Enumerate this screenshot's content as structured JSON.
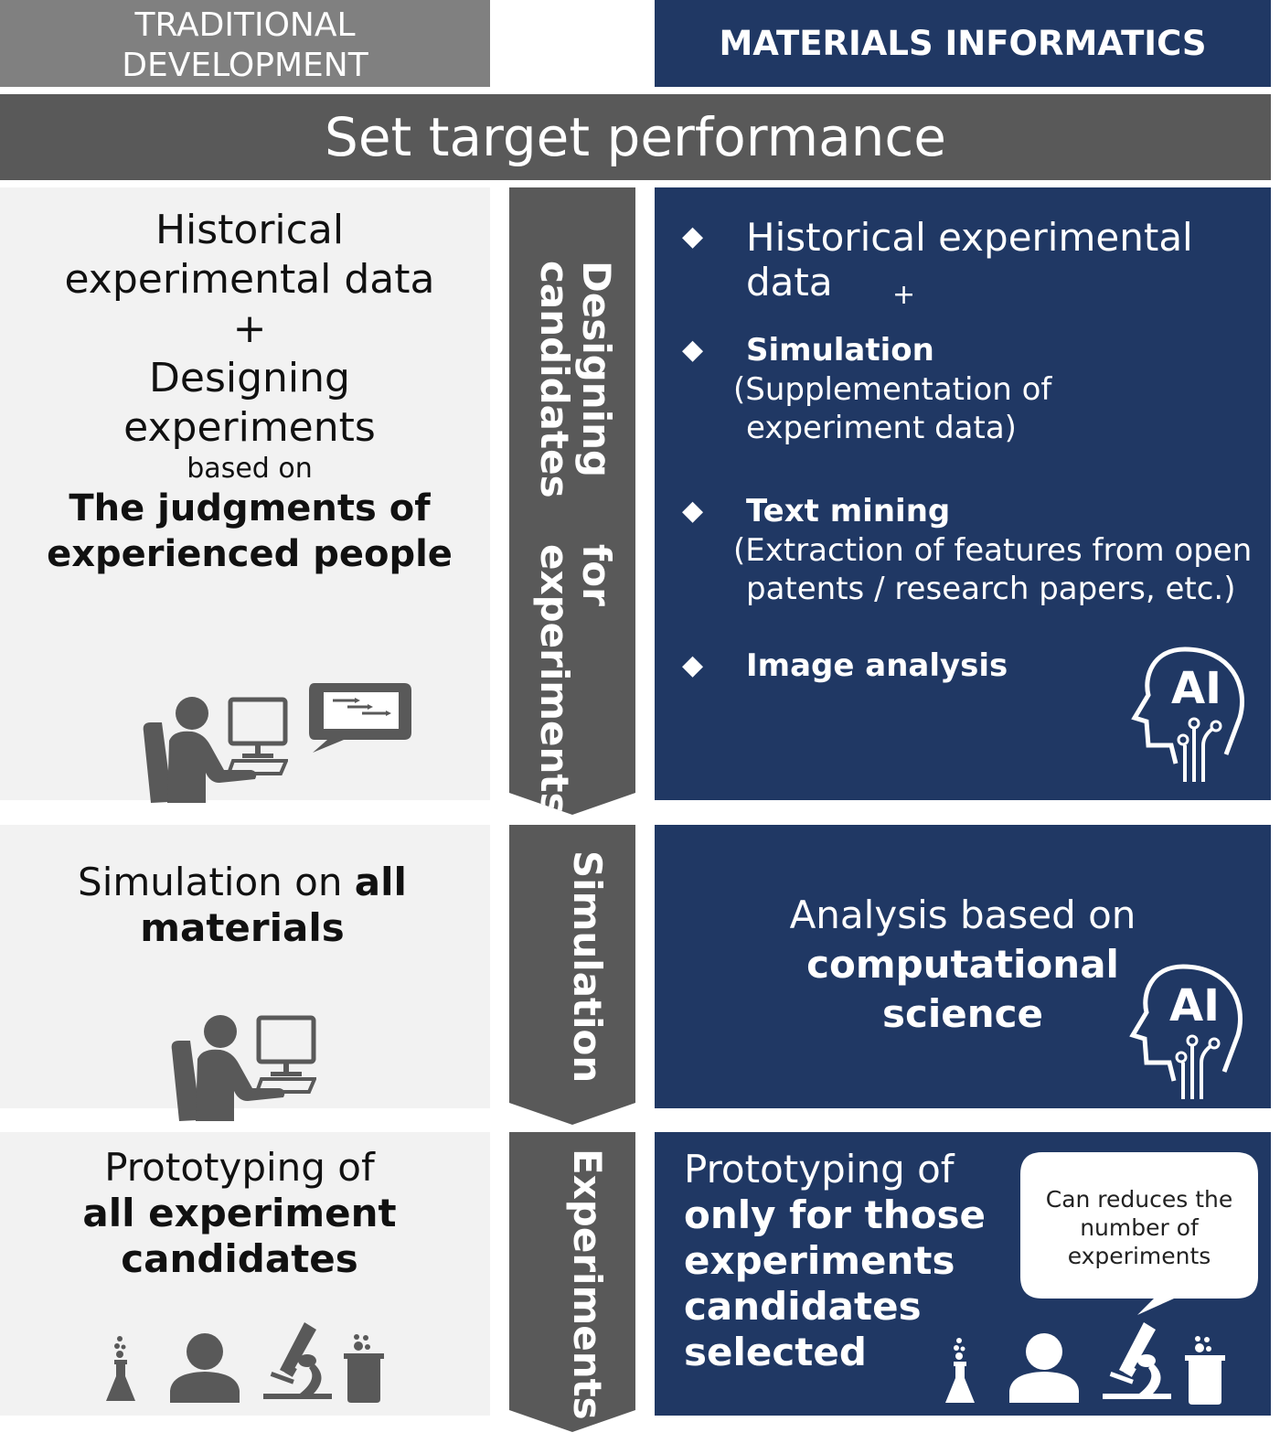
{
  "headers": {
    "traditional": "TRADITIONAL DEVELOPMENT",
    "traditional_line1": "TRADITIONAL",
    "traditional_line2": "DEVELOPMENT",
    "informatics": "MATERIALS INFORMATICS"
  },
  "banner": "Set target performance",
  "stages": [
    {
      "arrow_line1": "Designing candidates",
      "arrow_line2": "for experiments"
    },
    {
      "arrow": "Simulation"
    },
    {
      "arrow": "Experiments"
    }
  ],
  "traditional": {
    "row1": {
      "l1": "Historical",
      "l2": "experimental data",
      "plus": "+",
      "l3": "Designing",
      "l4": "experiments",
      "small": "based on",
      "bold1": "The judgments of",
      "bold2": "experienced people"
    },
    "row2": {
      "l1": "Simulation on ",
      "l1_bold": "all",
      "l2_bold": "materials"
    },
    "row3": {
      "l1": "Prototyping of",
      "bold1": "all experiment",
      "bold2": "candidates"
    }
  },
  "informatics": {
    "row1": {
      "item1": "Historical experimental data",
      "plus": "+",
      "item2": "Simulation",
      "item2_sub1": "(Supplementation of",
      "item2_sub2": "experiment data)",
      "item3": "Text mining",
      "item3_sub1": "(Extraction of features from open",
      "item3_sub2": "patents / research papers, etc.)",
      "item4": "Image analysis",
      "ai_label": "AI"
    },
    "row2": {
      "l1": "Analysis based on",
      "bold1": "computational",
      "bold2": "science",
      "ai_label": "AI"
    },
    "row3": {
      "l1": "Prototyping of",
      "bold1": "only for those",
      "bold2": "experiments",
      "bold3": "candidates",
      "bold4": "selected",
      "bubble1": "Can reduces the",
      "bubble2": "number of",
      "bubble3": "experiments"
    }
  },
  "colors": {
    "navy": "#203864",
    "dark_gray": "#595959",
    "header_gray": "#808080",
    "panel": "#f2f2f2"
  }
}
